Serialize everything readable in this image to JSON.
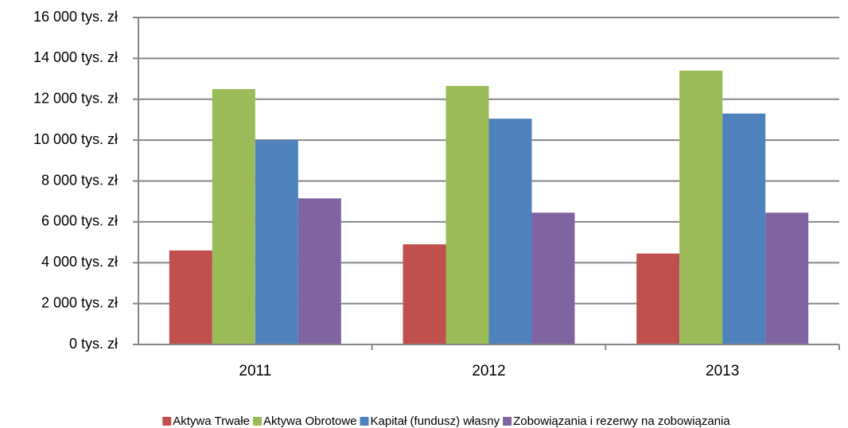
{
  "chart_data": {
    "type": "bar",
    "categories": [
      "2011",
      "2012",
      "2013"
    ],
    "series": [
      {
        "name": "Aktywa Trwałe",
        "color": "#c0504d",
        "values": [
          4600,
          4900,
          4450
        ]
      },
      {
        "name": "Aktywa Obrotowe",
        "color": "#9bbb59",
        "values": [
          12500,
          12650,
          13400
        ]
      },
      {
        "name": "Kapitał (fundusz) własny",
        "color": "#4f81bd",
        "values": [
          10000,
          11050,
          11300
        ]
      },
      {
        "name": "Zobowiązania i rezerwy na zobowiązania",
        "color": "#8064a2",
        "values": [
          7150,
          6450,
          6450
        ]
      }
    ],
    "ylim": [
      0,
      16000
    ],
    "yticks": [
      {
        "value": 0,
        "label": "0 tys. zł"
      },
      {
        "value": 2000,
        "label": "2 000 tys. zł"
      },
      {
        "value": 4000,
        "label": "4 000 tys. zł"
      },
      {
        "value": 6000,
        "label": "6 000 tys. zł"
      },
      {
        "value": 8000,
        "label": "8 000 tys. zł"
      },
      {
        "value": 10000,
        "label": "10 000 tys. zł"
      },
      {
        "value": 12000,
        "label": "12 000 tys. zł"
      },
      {
        "value": 14000,
        "label": "14 000 tys. zł"
      },
      {
        "value": 16000,
        "label": "16 000 tys. zł"
      }
    ],
    "grid": true,
    "legend": "bottom"
  }
}
